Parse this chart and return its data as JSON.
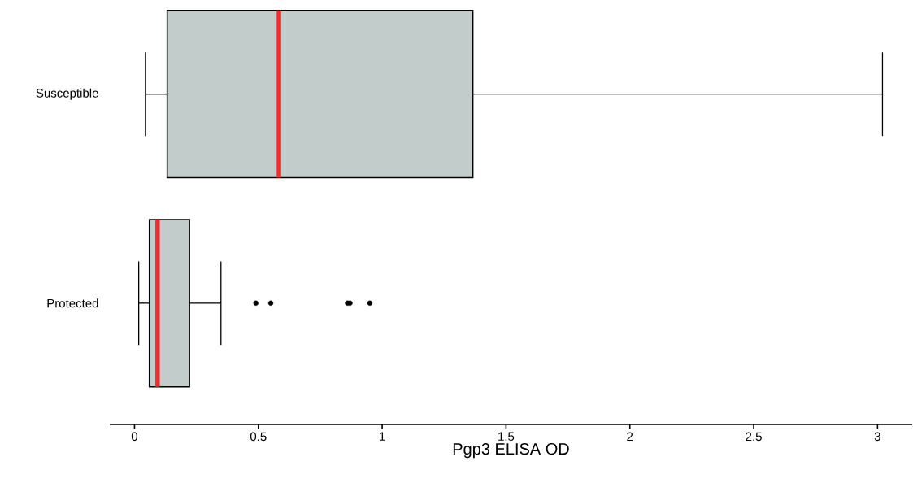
{
  "chart_data": {
    "type": "box",
    "orientation": "horizontal",
    "xlabel": "Pgp3 ELISA OD",
    "categories": [
      "Susceptible",
      "Protected"
    ],
    "color": "#c1cccb",
    "boxes": [
      {
        "low": 0.044,
        "q1": 0.132,
        "median": 0.583,
        "q3": 1.366,
        "high": 3.02
      },
      {
        "low": 0.017,
        "q1": 0.06,
        "median": 0.093,
        "q3": 0.222,
        "high": 0.349,
        "outliers": [
          0.49,
          0.55,
          0.86,
          0.87,
          0.95
        ]
      }
    ],
    "xlim": [
      -0.1,
      3.14
    ],
    "xticks": [
      0,
      0.5,
      1,
      1.5,
      2,
      2.5,
      3
    ],
    "grid": false
  }
}
